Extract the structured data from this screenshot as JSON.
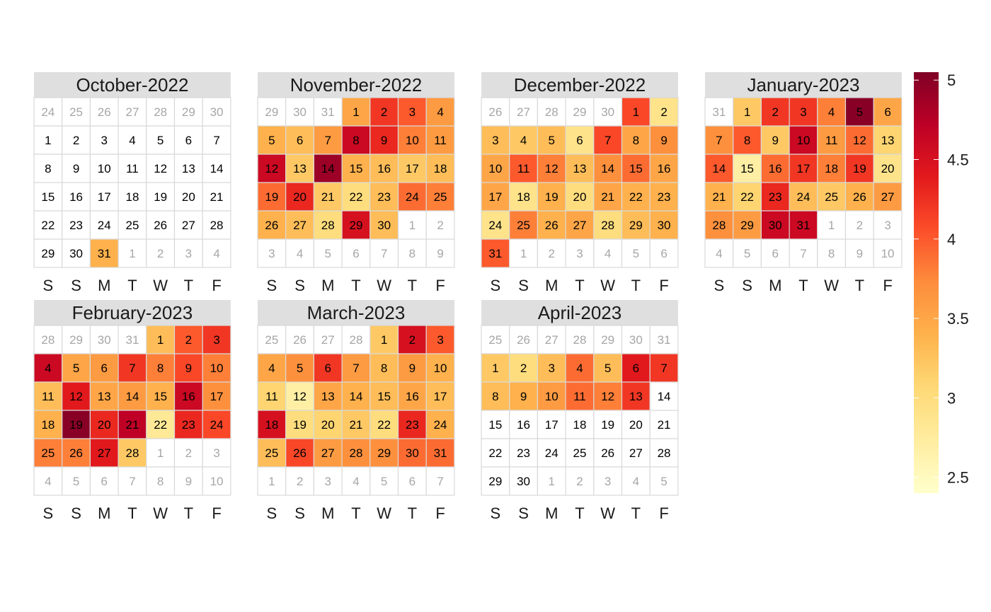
{
  "chart_data": {
    "type": "heatmap",
    "title": "",
    "weekday_labels": [
      "S",
      "S",
      "M",
      "T",
      "W",
      "T",
      "F"
    ],
    "colorbar": {
      "range": [
        2.4,
        5.05
      ],
      "ticks": [
        "2.5",
        "3",
        "3.5",
        "4",
        "4.5",
        "5"
      ],
      "tick_values": [
        2.5,
        3,
        3.5,
        4,
        4.5,
        5
      ],
      "colors": [
        "#ffffcc",
        "#ffeda0",
        "#fed976",
        "#feb24c",
        "#fd8d3c",
        "#fc4e2a",
        "#e31a1c",
        "#bd0026",
        "#800026"
      ]
    },
    "months": [
      {
        "title": "October-2022",
        "grid": [
          [
            24,
            25,
            26,
            27,
            28,
            29,
            30
          ],
          [
            1,
            2,
            3,
            4,
            5,
            6,
            7
          ],
          [
            8,
            9,
            10,
            11,
            12,
            13,
            14
          ],
          [
            15,
            16,
            17,
            18,
            19,
            20,
            21
          ],
          [
            22,
            23,
            24,
            25,
            26,
            27,
            28
          ],
          [
            29,
            30,
            31,
            1,
            2,
            3,
            4
          ]
        ],
        "current_start": 7,
        "current_end": 37,
        "values": {
          "31": 3.4
        }
      },
      {
        "title": "November-2022",
        "grid": [
          [
            29,
            30,
            31,
            1,
            2,
            3,
            4
          ],
          [
            5,
            6,
            7,
            8,
            9,
            10,
            11
          ],
          [
            12,
            13,
            14,
            15,
            16,
            17,
            18
          ],
          [
            19,
            20,
            21,
            22,
            23,
            24,
            25
          ],
          [
            26,
            27,
            28,
            29,
            30,
            1,
            2
          ],
          [
            3,
            4,
            5,
            6,
            7,
            8,
            9
          ]
        ],
        "current_start": 3,
        "current_end": 32,
        "values": {
          "1": 3.5,
          "2": 4.2,
          "3": 4.0,
          "4": 3.6,
          "5": 3.4,
          "6": 3.3,
          "7": 3.6,
          "8": 4.6,
          "9": 4.3,
          "10": 3.8,
          "11": 3.6,
          "12": 4.6,
          "13": 3.2,
          "14": 4.9,
          "15": 3.4,
          "16": 3.3,
          "17": 3.2,
          "18": 3.3,
          "19": 3.9,
          "20": 4.3,
          "21": 3.2,
          "22": 3.0,
          "23": 3.3,
          "24": 3.9,
          "25": 3.8,
          "26": 3.4,
          "27": 3.3,
          "28": 3.0,
          "29": 4.5,
          "30": 3.3
        }
      },
      {
        "title": "December-2022",
        "grid": [
          [
            26,
            27,
            28,
            29,
            30,
            1,
            2
          ],
          [
            3,
            4,
            5,
            6,
            7,
            8,
            9
          ],
          [
            10,
            11,
            12,
            13,
            14,
            15,
            16
          ],
          [
            17,
            18,
            19,
            20,
            21,
            22,
            23
          ],
          [
            24,
            25,
            26,
            27,
            28,
            29,
            30
          ],
          [
            31,
            1,
            2,
            3,
            4,
            5,
            6
          ]
        ],
        "current_start": 5,
        "current_end": 35,
        "values": {
          "1": 4.1,
          "2": 2.9,
          "3": 3.3,
          "4": 3.2,
          "5": 3.3,
          "6": 2.9,
          "7": 4.1,
          "8": 3.5,
          "9": 3.7,
          "10": 3.5,
          "11": 4.0,
          "12": 3.8,
          "13": 3.3,
          "14": 3.7,
          "15": 3.9,
          "16": 3.5,
          "17": 3.5,
          "18": 2.9,
          "19": 3.4,
          "20": 3.0,
          "21": 3.5,
          "22": 3.4,
          "23": 3.4,
          "24": 2.9,
          "25": 3.8,
          "26": 3.4,
          "27": 3.5,
          "28": 3.0,
          "29": 3.3,
          "30": 3.4,
          "31": 4.0
        }
      },
      {
        "title": "January-2023",
        "grid": [
          [
            31,
            1,
            2,
            3,
            4,
            5,
            6
          ],
          [
            7,
            8,
            9,
            10,
            11,
            12,
            13
          ],
          [
            14,
            15,
            16,
            17,
            18,
            19,
            20
          ],
          [
            21,
            22,
            23,
            24,
            25,
            26,
            27
          ],
          [
            28,
            29,
            30,
            31,
            1,
            2,
            3
          ],
          [
            4,
            5,
            6,
            7,
            8,
            9,
            10
          ]
        ],
        "current_start": 1,
        "current_end": 31,
        "values": {
          "1": 3.2,
          "2": 4.2,
          "3": 4.2,
          "4": 3.8,
          "5": 5.0,
          "6": 3.5,
          "7": 3.7,
          "8": 4.0,
          "9": 3.2,
          "10": 4.6,
          "11": 3.6,
          "12": 3.9,
          "13": 3.1,
          "14": 4.0,
          "15": 2.7,
          "16": 3.9,
          "17": 4.2,
          "18": 3.8,
          "19": 4.2,
          "20": 2.9,
          "21": 3.4,
          "22": 3.1,
          "23": 4.3,
          "24": 3.3,
          "25": 3.2,
          "26": 3.4,
          "27": 3.6,
          "28": 3.7,
          "29": 3.6,
          "30": 4.6,
          "31": 4.6
        }
      },
      {
        "title": "February-2023",
        "grid": [
          [
            28,
            29,
            30,
            31,
            1,
            2,
            3
          ],
          [
            4,
            5,
            6,
            7,
            8,
            9,
            10
          ],
          [
            11,
            12,
            13,
            14,
            15,
            16,
            17
          ],
          [
            18,
            19,
            20,
            21,
            22,
            23,
            24
          ],
          [
            25,
            26,
            27,
            28,
            1,
            2,
            3
          ],
          [
            4,
            5,
            6,
            7,
            8,
            9,
            10
          ]
        ],
        "current_start": 4,
        "current_end": 31,
        "values": {
          "1": 3.3,
          "2": 4.0,
          "3": 4.2,
          "4": 4.6,
          "5": 3.5,
          "6": 3.6,
          "7": 4.2,
          "8": 3.8,
          "9": 4.1,
          "10": 3.8,
          "11": 3.3,
          "12": 4.4,
          "13": 3.5,
          "14": 3.6,
          "15": 3.4,
          "16": 4.6,
          "17": 3.7,
          "18": 3.4,
          "19": 5.0,
          "20": 4.3,
          "21": 4.7,
          "22": 2.8,
          "23": 4.3,
          "24": 4.1,
          "25": 3.8,
          "26": 3.8,
          "27": 4.4,
          "28": 3.2
        }
      },
      {
        "title": "March-2023",
        "grid": [
          [
            25,
            26,
            27,
            28,
            1,
            2,
            3
          ],
          [
            4,
            5,
            6,
            7,
            8,
            9,
            10
          ],
          [
            11,
            12,
            13,
            14,
            15,
            16,
            17
          ],
          [
            18,
            19,
            20,
            21,
            22,
            23,
            24
          ],
          [
            25,
            26,
            27,
            28,
            29,
            30,
            31
          ],
          [
            1,
            2,
            3,
            4,
            5,
            6,
            7
          ]
        ],
        "current_start": 4,
        "current_end": 34,
        "values": {
          "1": 3.2,
          "2": 4.5,
          "3": 4.0,
          "4": 3.5,
          "5": 3.7,
          "6": 4.2,
          "7": 3.6,
          "8": 3.3,
          "9": 3.6,
          "10": 3.4,
          "11": 3.1,
          "12": 2.7,
          "13": 3.5,
          "14": 3.4,
          "15": 3.3,
          "16": 3.5,
          "17": 3.3,
          "18": 4.5,
          "19": 3.0,
          "20": 3.1,
          "21": 3.2,
          "22": 3.0,
          "23": 4.3,
          "24": 3.4,
          "25": 3.3,
          "26": 4.1,
          "27": 3.6,
          "28": 3.7,
          "29": 3.7,
          "30": 3.9,
          "31": 3.9
        }
      },
      {
        "title": "April-2023",
        "grid": [
          [
            25,
            26,
            27,
            28,
            29,
            30,
            31
          ],
          [
            1,
            2,
            3,
            4,
            5,
            6,
            7
          ],
          [
            8,
            9,
            10,
            11,
            12,
            13,
            14
          ],
          [
            15,
            16,
            17,
            18,
            19,
            20,
            21
          ],
          [
            22,
            23,
            24,
            25,
            26,
            27,
            28
          ],
          [
            29,
            30,
            1,
            2,
            3,
            4,
            5
          ]
        ],
        "current_start": 7,
        "current_end": 36,
        "values": {
          "1": 3.2,
          "2": 3.0,
          "3": 3.3,
          "4": 3.9,
          "5": 3.3,
          "6": 4.4,
          "7": 4.2,
          "8": 3.3,
          "9": 3.4,
          "10": 3.6,
          "11": 3.9,
          "12": 3.8,
          "13": 4.2
        }
      }
    ]
  }
}
